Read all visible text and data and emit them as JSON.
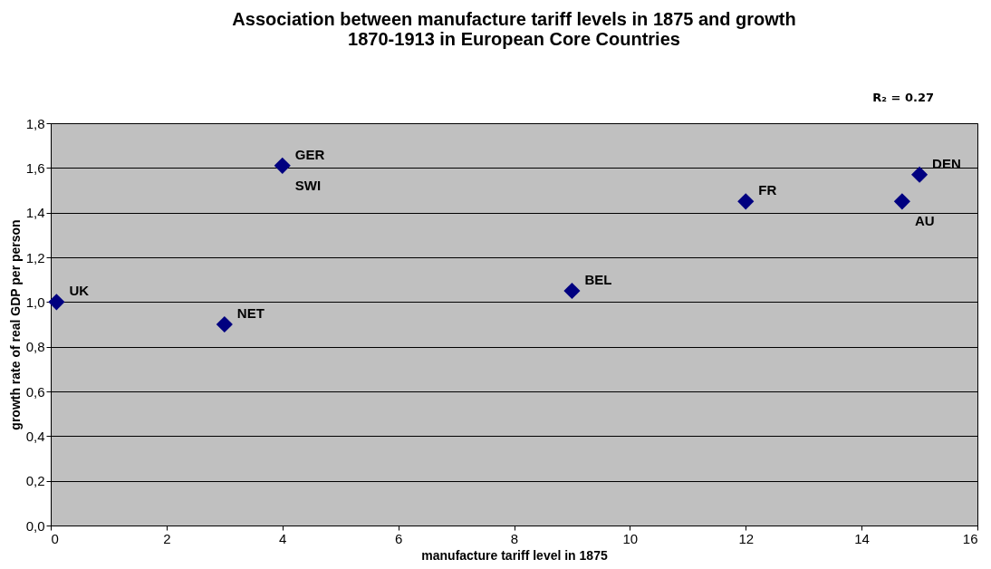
{
  "chart_data": {
    "type": "scatter",
    "title": "Association  between manufacture tariff levels in 1875 and growth 1870-1913 in European Core Countries",
    "xlabel": "manufacture tariff level in 1875",
    "ylabel": "growth rate of real GDP per person",
    "x": [
      0.1,
      3,
      4,
      9,
      12,
      14.7,
      15
    ],
    "series": [
      {
        "color": "#000080",
        "values": [
          1.0,
          0.9,
          1.61,
          1.05,
          1.45,
          1.45,
          1.57
        ]
      }
    ],
    "annotations": [
      {
        "text": "UK",
        "x": 0.1,
        "y": 1.0
      },
      {
        "text": "NET",
        "x": 3,
        "y": 0.9
      },
      {
        "text": "GER",
        "x": 4,
        "y": 1.61
      },
      {
        "text": "SWI",
        "x": 4,
        "y": 1.61
      },
      {
        "text": "BEL",
        "x": 9,
        "y": 1.05
      },
      {
        "text": "FR",
        "x": 12,
        "y": 1.45
      },
      {
        "text": "DEN",
        "x": 15,
        "y": 1.57
      },
      {
        "text": "AU",
        "x": 14.7,
        "y": 1.45
      },
      "R₂ = 0.27"
    ],
    "xlim": [
      0,
      16
    ],
    "xticks": [
      0,
      2,
      4,
      6,
      8,
      10,
      12,
      14,
      16
    ],
    "ylim": [
      0,
      1.8
    ],
    "yticks": [
      {
        "value": 0,
        "label": "0,0"
      },
      {
        "value": 0.2,
        "label": "0,2"
      },
      {
        "value": 0.4,
        "label": "0,4"
      },
      {
        "value": 0.6,
        "label": "0,6"
      },
      {
        "value": 0.8,
        "label": "0,8"
      },
      {
        "value": 1.0,
        "label": "1,0"
      },
      {
        "value": 1.2,
        "label": "1,2"
      },
      {
        "value": 1.4,
        "label": "1,4"
      },
      {
        "value": 1.6,
        "label": "1,6"
      },
      {
        "value": 1.8,
        "label": "1,8"
      }
    ],
    "grid": "y",
    "marker": "diamond"
  }
}
